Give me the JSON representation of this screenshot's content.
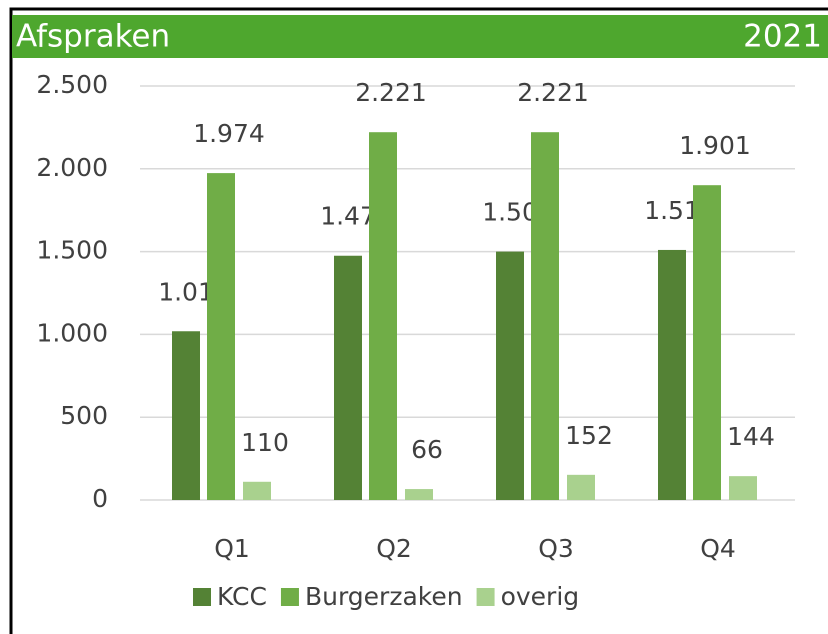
{
  "chart_data": {
    "type": "bar",
    "title": "Afspraken",
    "subtitle": "2021",
    "categories": [
      "Q1",
      "Q2",
      "Q3",
      "Q4"
    ],
    "series": [
      {
        "name": "KCC",
        "color": "#548235",
        "values": [
          1019,
          1475,
          1500,
          1510
        ],
        "value_labels": [
          "1.019",
          "1.475",
          "1.500",
          "1.510"
        ]
      },
      {
        "name": "Burgerzaken",
        "color": "#70ad47",
        "values": [
          1974,
          2221,
          2221,
          1901
        ],
        "value_labels": [
          "1.974",
          "2.221",
          "2.221",
          "1.901"
        ]
      },
      {
        "name": "overig",
        "color": "#a9d18e",
        "values": [
          110,
          66,
          152,
          144
        ],
        "value_labels": [
          "110",
          "66",
          "152",
          "144"
        ]
      }
    ],
    "ylim": [
      0,
      2500
    ],
    "yticks": [
      0,
      500,
      {
        "value": 1000,
        "label": "1.000"
      },
      {
        "value": 1500,
        "label": "1.500"
      },
      {
        "value": 2000,
        "label": "2.000"
      },
      {
        "value": 2500,
        "label": "2.500"
      }
    ],
    "grid": true,
    "legend": "bottom"
  }
}
